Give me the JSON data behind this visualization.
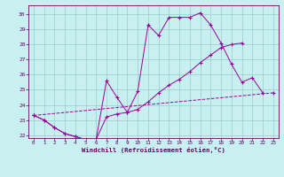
{
  "xlabel": "Windchill (Refroidissement éolien,°C)",
  "bg_color": "#c8f0f0",
  "line_color": "#990099",
  "grid_color": "#99cccc",
  "xlim": [
    -0.5,
    23.5
  ],
  "ylim": [
    21.8,
    30.6
  ],
  "yticks": [
    22,
    23,
    24,
    25,
    26,
    27,
    28,
    29,
    30
  ],
  "xticks": [
    0,
    1,
    2,
    3,
    4,
    5,
    6,
    7,
    8,
    9,
    10,
    11,
    12,
    13,
    14,
    15,
    16,
    17,
    18,
    19,
    20,
    21,
    22,
    23
  ],
  "line1_x": [
    0,
    1,
    2,
    3,
    4,
    5,
    6,
    7,
    8,
    9,
    10,
    11,
    12,
    13,
    14,
    15,
    16,
    17,
    18,
    19,
    20,
    21,
    22
  ],
  "line1_y": [
    23.3,
    23.0,
    22.5,
    22.1,
    21.9,
    21.7,
    21.7,
    25.6,
    24.5,
    23.5,
    24.9,
    29.3,
    28.6,
    29.8,
    29.8,
    29.8,
    30.1,
    29.3,
    28.1,
    26.7,
    25.5,
    25.8,
    24.8
  ],
  "line2_x": [
    0,
    1,
    2,
    3,
    4,
    5,
    6,
    7,
    8,
    9,
    10,
    11,
    12,
    13,
    14,
    15,
    16,
    17,
    18,
    19,
    20
  ],
  "line2_y": [
    23.3,
    23.0,
    22.5,
    22.1,
    21.9,
    21.7,
    21.7,
    23.2,
    23.4,
    23.5,
    23.7,
    24.2,
    24.8,
    25.3,
    25.7,
    26.2,
    26.8,
    27.3,
    27.8,
    28.0,
    28.1
  ],
  "line3_x": [
    0,
    23
  ],
  "line3_y": [
    23.3,
    24.8
  ]
}
